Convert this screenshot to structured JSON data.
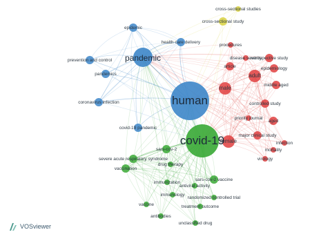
{
  "app": {
    "name": "VOSviewer"
  },
  "colors": {
    "clusters": {
      "red": "#e0403f",
      "green": "#39a935",
      "blue": "#3d86c9",
      "yellow": "#d9d23f"
    },
    "logo": "#4d9a8e"
  },
  "diagram": {
    "type": "co-occurrence network",
    "nodes": [
      {
        "id": "human",
        "label": "human",
        "cluster": "blue",
        "weight": 10
      },
      {
        "id": "covid",
        "label": "covid-19",
        "cluster": "green",
        "weight": 9
      },
      {
        "id": "pandemic",
        "label": "pandemic",
        "cluster": "blue",
        "weight": 6
      },
      {
        "id": "cross-sectional",
        "label": "cross-sectional study",
        "cluster": "yellow",
        "weight": 2
      },
      {
        "id": "cross-sectional-studies",
        "label": "cross-sectional studies",
        "cluster": "yellow",
        "weight": 1
      },
      {
        "id": "epidemic",
        "label": "epidemic",
        "cluster": "blue",
        "weight": 2
      },
      {
        "id": "health-care",
        "label": "health care delivery",
        "cluster": "blue",
        "weight": 2
      },
      {
        "id": "coronavirus-infection",
        "label": "coronavirus infection",
        "cluster": "blue",
        "weight": 2
      },
      {
        "id": "prevention",
        "label": "prevention and control",
        "cluster": "blue",
        "weight": 2
      },
      {
        "id": "pandemics",
        "label": "pandemics",
        "cluster": "blue",
        "weight": 2
      },
      {
        "id": "covid-pandemic",
        "label": "covid-19 pandemic",
        "cluster": "blue",
        "weight": 2
      },
      {
        "id": "male",
        "label": "male",
        "cluster": "red",
        "weight": 3
      },
      {
        "id": "female",
        "label": "female",
        "cluster": "red",
        "weight": 3
      },
      {
        "id": "adult",
        "label": "adult",
        "cluster": "red",
        "weight": 3
      },
      {
        "id": "controlled-study",
        "label": "controlled study",
        "cluster": "red",
        "weight": 2
      },
      {
        "id": "major-study",
        "label": "major clinical study",
        "cluster": "red",
        "weight": 2
      },
      {
        "id": "epidemiology",
        "label": "epidemiology",
        "cluster": "red",
        "weight": 2
      },
      {
        "id": "middle-aged",
        "label": "middle aged",
        "cluster": "red",
        "weight": 2
      },
      {
        "id": "aged",
        "label": "aged",
        "cluster": "red",
        "weight": 2
      },
      {
        "id": "retrospective",
        "label": "retrospective study",
        "cluster": "red",
        "weight": 2
      },
      {
        "id": "article",
        "label": "article",
        "cluster": "red",
        "weight": 2
      },
      {
        "id": "procedures",
        "label": "procedures",
        "cluster": "red",
        "weight": 1
      },
      {
        "id": "mortality",
        "label": "mortality",
        "cluster": "red",
        "weight": 1
      },
      {
        "id": "virology",
        "label": "virology",
        "cluster": "red",
        "weight": 1
      },
      {
        "id": "infection",
        "label": "infection",
        "cluster": "red",
        "weight": 1
      },
      {
        "id": "disease-severity",
        "label": "disease severity",
        "cluster": "red",
        "weight": 1
      },
      {
        "id": "priority",
        "label": "priority journal",
        "cluster": "red",
        "weight": 1
      },
      {
        "id": "sars",
        "label": "severe acute respiratory syndrome",
        "cluster": "green",
        "weight": 2
      },
      {
        "id": "vaccination",
        "label": "vaccination",
        "cluster": "green",
        "weight": 2
      },
      {
        "id": "sars-cov-2",
        "label": "sars-cov-2",
        "cluster": "green",
        "weight": 2
      },
      {
        "id": "sars-vaccine",
        "label": "sars-cov-2 vaccine",
        "cluster": "green",
        "weight": 2
      },
      {
        "id": "immunization",
        "label": "immunization",
        "cluster": "green",
        "weight": 1
      },
      {
        "id": "vaccine",
        "label": "vaccine",
        "cluster": "green",
        "weight": 1
      },
      {
        "id": "antiviral",
        "label": "antiviral activity",
        "cluster": "green",
        "weight": 1
      },
      {
        "id": "immunology",
        "label": "immunology",
        "cluster": "green",
        "weight": 1
      },
      {
        "id": "drug-therapy",
        "label": "drug therapy",
        "cluster": "green",
        "weight": 1
      },
      {
        "id": "rct",
        "label": "randomized controlled trial",
        "cluster": "green",
        "weight": 1
      },
      {
        "id": "treatment",
        "label": "treatment outcome",
        "cluster": "green",
        "weight": 1
      },
      {
        "id": "unclassified",
        "label": "unclassified drug",
        "cluster": "green",
        "weight": 1
      },
      {
        "id": "antibodies",
        "label": "antibodies",
        "cluster": "green",
        "weight": 1
      }
    ]
  }
}
